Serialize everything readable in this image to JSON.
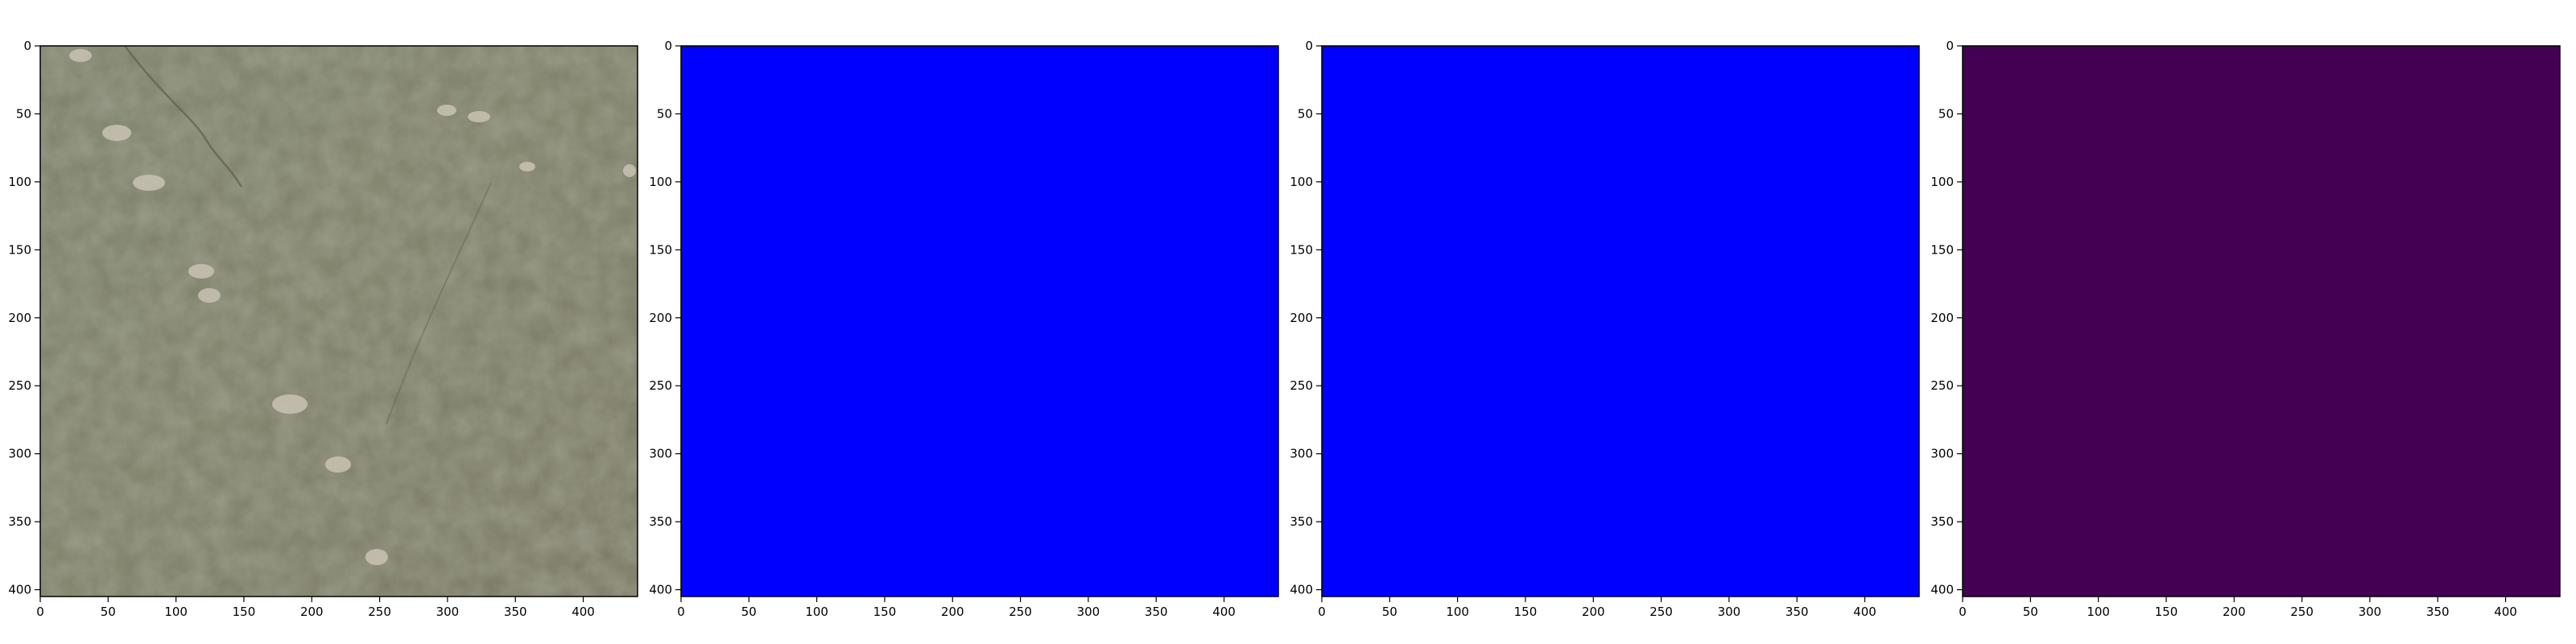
{
  "figure": {
    "background": "#ffffff",
    "panels": [
      {
        "name": "aerial-photo",
        "kind": "image",
        "fill": "#7a7d66",
        "xticks": [
          0,
          50,
          100,
          150,
          200,
          250,
          300,
          350,
          400
        ],
        "yticks": [
          0,
          50,
          100,
          150,
          200,
          250,
          300,
          350,
          400
        ]
      },
      {
        "name": "mask-blue-1",
        "kind": "solid",
        "fill": "#0000ff",
        "xticks": [
          0,
          50,
          100,
          150,
          200,
          250,
          300,
          350,
          400
        ],
        "yticks": [
          0,
          50,
          100,
          150,
          200,
          250,
          300,
          350,
          400
        ]
      },
      {
        "name": "mask-blue-2",
        "kind": "solid",
        "fill": "#0000ff",
        "xticks": [
          0,
          50,
          100,
          150,
          200,
          250,
          300,
          350,
          400
        ],
        "yticks": [
          0,
          50,
          100,
          150,
          200,
          250,
          300,
          350,
          400
        ]
      },
      {
        "name": "mask-purple",
        "kind": "solid",
        "fill": "#440154",
        "xticks": [
          0,
          50,
          100,
          150,
          200,
          250,
          300,
          350,
          400
        ],
        "yticks": [
          0,
          50,
          100,
          150,
          200,
          250,
          300,
          350,
          400
        ]
      }
    ]
  }
}
